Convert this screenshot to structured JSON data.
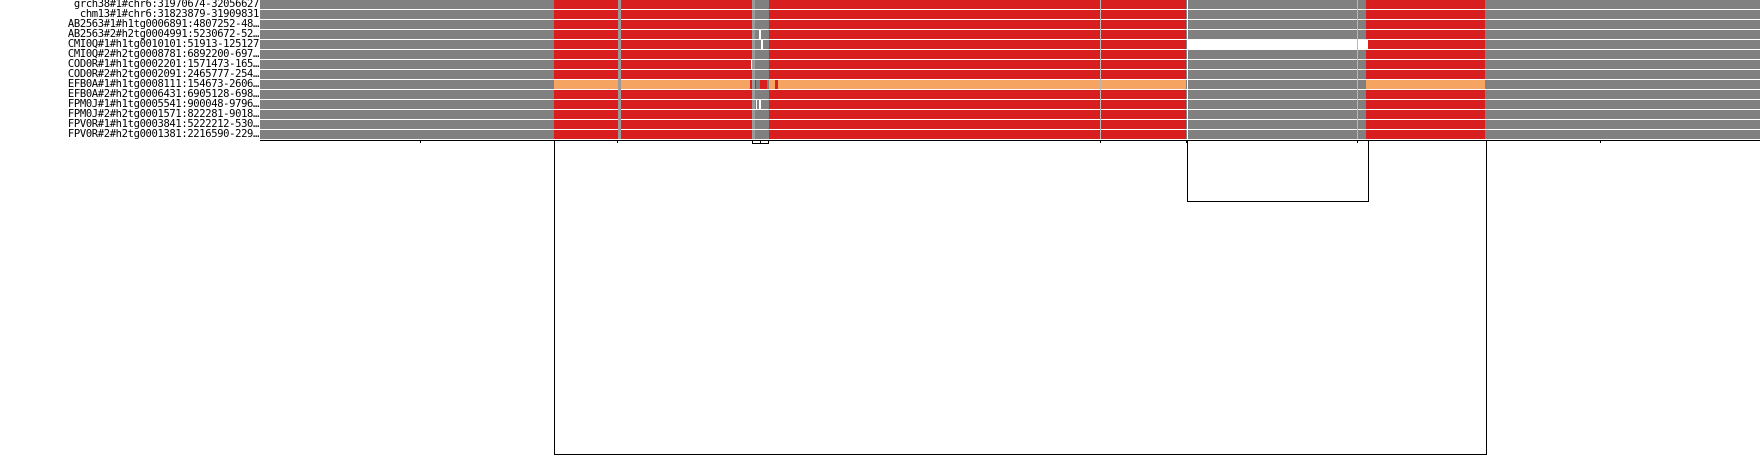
{
  "colors": {
    "background": "#ffffff",
    "base_gray": "#808080",
    "shared_red": "#d81e1e",
    "highlight_orange": "#f5a462",
    "divider": "#a0a0a0",
    "outline": "#000000"
  },
  "tracks": [
    {
      "label": "grch38#1#chr6:31970674-32056627",
      "style": "normal"
    },
    {
      "label": "chm13#1#chr6:31823879-31909831",
      "style": "normal"
    },
    {
      "label": "AB2563#1#h1tg0006891:4807252-48…",
      "style": "normal"
    },
    {
      "label": "AB2563#2#h2tg0004991:5230672-52…",
      "style": "normal"
    },
    {
      "label": "CMI0Q#1#h1tg0010101:51913-125127",
      "style": "deleted"
    },
    {
      "label": "CMI0Q#2#h2tg0008781:6892200-697…",
      "style": "normal"
    },
    {
      "label": "COD0R#1#h1tg0002201:1571473-165…",
      "style": "normal"
    },
    {
      "label": "COD0R#2#h2tg0002091:2465777-254…",
      "style": "normal"
    },
    {
      "label": "EFB0A#1#h1tg0008111:154673-2606…",
      "style": "highlight"
    },
    {
      "label": "EFB0A#2#h2tg0006431:6905128-698…",
      "style": "normal"
    },
    {
      "label": "FPM0J#1#h1tg0005541:900048-9796…",
      "style": "normal"
    },
    {
      "label": "FPM0J#2#h2tg0001571:822281-9018…",
      "style": "normal"
    },
    {
      "label": "FPV0R#1#h1tg0003841:5222212-530…",
      "style": "normal"
    },
    {
      "label": "FPV0R#2#h2tg0001381:2216590-229…",
      "style": "normal"
    }
  ]
}
